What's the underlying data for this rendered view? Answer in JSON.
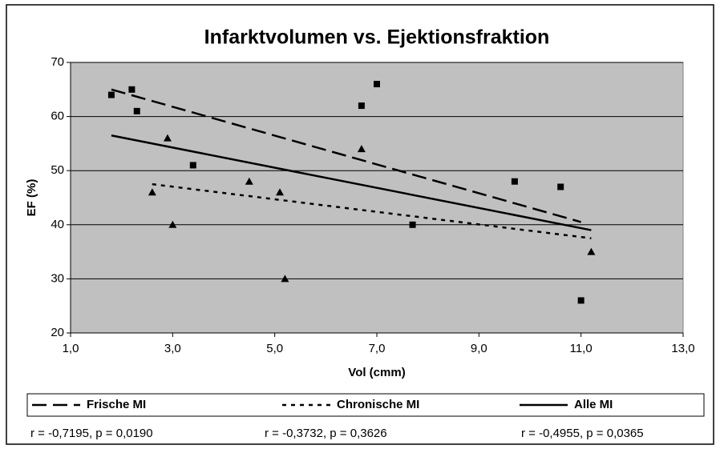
{
  "chart_data": {
    "type": "scatter",
    "title": "Infarktvolumen vs. Ejektionsfraktion",
    "x_label": "Vol (cmm)",
    "y_label": "EF (%)",
    "xlim": [
      1,
      13
    ],
    "xticks": [
      {
        "value": 1,
        "label": "1,0"
      },
      {
        "value": 3,
        "label": "3,0"
      },
      {
        "value": 5,
        "label": "5,0"
      },
      {
        "value": 7,
        "label": "7,0"
      },
      {
        "value": 9,
        "label": "9,0"
      },
      {
        "value": 11,
        "label": "11,0"
      },
      {
        "value": 13,
        "label": "13,0"
      }
    ],
    "ylim": [
      20,
      70
    ],
    "yticks": [
      20,
      30,
      40,
      50,
      60,
      70
    ],
    "grid": true,
    "plot_background": "#c0c0c0",
    "series": [
      {
        "marker": "square",
        "color": "#000000",
        "x": [
          1.8,
          2.2,
          2.3,
          3.4,
          6.7,
          7.0,
          7.7,
          9.7,
          10.6,
          11.0
        ],
        "values": [
          64,
          65,
          61,
          51,
          62,
          66,
          40,
          48,
          47,
          26
        ]
      },
      {
        "marker": "triangle",
        "color": "#000000",
        "x": [
          2.6,
          2.9,
          3.0,
          4.5,
          5.1,
          5.2,
          6.7,
          11.2
        ],
        "values": [
          46,
          56,
          40,
          48,
          46,
          30,
          54,
          35
        ]
      }
    ],
    "trendlines": [
      {
        "name": "Frische MI",
        "dash": "dashed",
        "color": "#000000",
        "x": [
          1.8,
          11.0
        ],
        "values": [
          65,
          40.5
        ]
      },
      {
        "name": "Chronische MI",
        "dash": "dotted",
        "color": "#000000",
        "x": [
          2.6,
          11.2
        ],
        "values": [
          47.5,
          37.5
        ]
      },
      {
        "name": "Alle MI",
        "dash": "solid",
        "color": "#000000",
        "x": [
          1.8,
          11.2
        ],
        "values": [
          56.5,
          39
        ]
      }
    ],
    "annotations": [
      "r = -0,7195, p = 0,0190",
      "r = -0,3732, p = 0,3626",
      "r = -0,4955, p = 0,0365"
    ]
  }
}
